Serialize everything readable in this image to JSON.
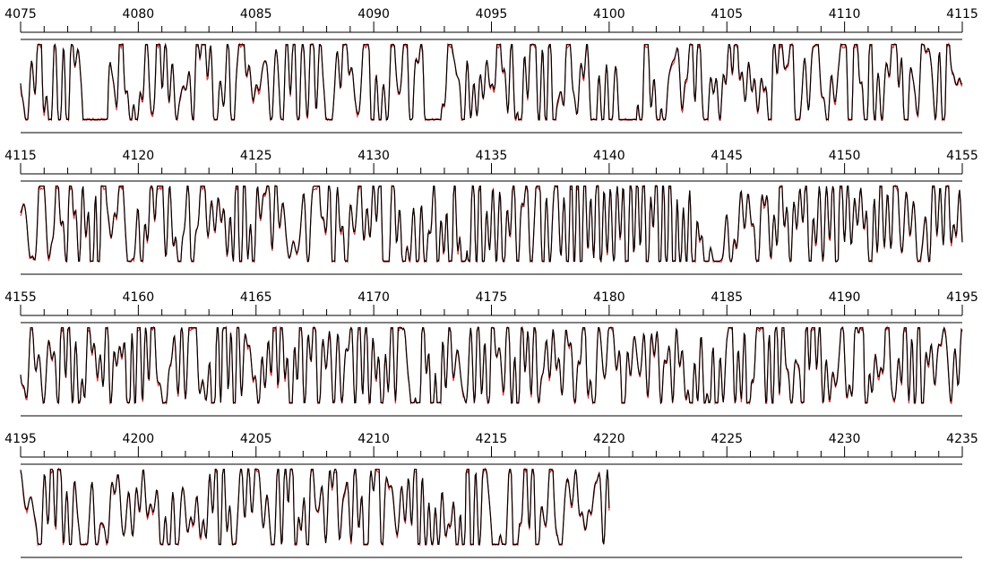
{
  "chart_data": {
    "type": "line",
    "title": "",
    "xlabel": "",
    "ylabel": "",
    "grid": false,
    "legend": "none",
    "colors": {
      "observed": "#000000",
      "model": "#ff2020",
      "axes": "#000000"
    },
    "panels": [
      {
        "xlim": [
          4075,
          4115
        ],
        "tick_labels": [
          "4075",
          "4080",
          "4085",
          "4090",
          "4095",
          "4100",
          "4105",
          "4110",
          "4115"
        ],
        "major_step": 5,
        "minor_step": 1,
        "data_xmax": 4115,
        "seed": 11,
        "dips": [
          4077.8,
          4078.5,
          4092.8,
          4100.2,
          4101.0
        ]
      },
      {
        "xlim": [
          4115,
          4155
        ],
        "tick_labels": [
          "4115",
          "4120",
          "4125",
          "4130",
          "4135",
          "4140",
          "4145",
          "4150",
          "4155"
        ],
        "major_step": 5,
        "minor_step": 1,
        "data_xmax": 4155,
        "seed": 23,
        "dips": [
          4132.0,
          4134.0,
          4143.6,
          4144.6
        ]
      },
      {
        "xlim": [
          4155,
          4195
        ],
        "tick_labels": [
          "4155",
          "4160",
          "4165",
          "4170",
          "4175",
          "4180",
          "4185",
          "4190",
          "4195"
        ],
        "major_step": 5,
        "minor_step": 1,
        "data_xmax": 4195,
        "seed": 37,
        "dips": [
          4172.5,
          4184.0
        ]
      },
      {
        "xlim": [
          4195,
          4235
        ],
        "tick_labels": [
          "4195",
          "4200",
          "4205",
          "4210",
          "4215",
          "4220",
          "4225",
          "4230",
          "4235"
        ],
        "major_step": 5,
        "minor_step": 1,
        "data_xmax": 4220,
        "seed": 53,
        "dips": [
          4198.0,
          4201.8,
          4213.2,
          4215.8
        ]
      }
    ],
    "series": [
      {
        "role": "observed"
      },
      {
        "role": "model"
      }
    ]
  }
}
